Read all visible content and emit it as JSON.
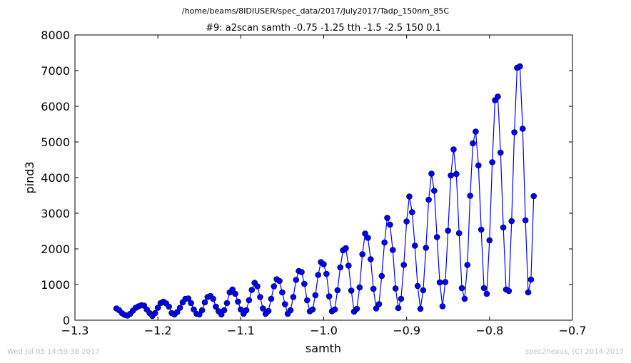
{
  "suptitle": "/home/beams/8IDIUSER/spec_data/2017/July2017/Tadp_150nm_85C",
  "footer_left": "Wed Jul 05 14:59:38 2017",
  "footer_right": "spec2nexus, (C) 2014-2017",
  "colors": {
    "series": "#0000ff",
    "marker_edge": "#000000",
    "footer_text": "#bfbfbf"
  },
  "chart_data": {
    "type": "line",
    "title": "#9: a2scan  samth -0.75 -1.25  tth -1.5 -2.5  150 0.1",
    "xlabel": "samth",
    "ylabel": "pind3",
    "xlim": [
      -1.3,
      -0.7
    ],
    "ylim": [
      0,
      8000
    ],
    "xticks": [
      -1.3,
      -1.2,
      -1.1,
      -1.0,
      -0.9,
      -0.8,
      -0.7
    ],
    "xtick_labels": [
      "−1.3",
      "−1.2",
      "−1.1",
      "−1.0",
      "−0.9",
      "−0.8",
      "−0.7"
    ],
    "yticks": [
      0,
      1000,
      2000,
      3000,
      4000,
      5000,
      6000,
      7000,
      8000
    ],
    "ytick_labels": [
      "0",
      "1000",
      "2000",
      "3000",
      "4000",
      "5000",
      "6000",
      "7000",
      "8000"
    ],
    "grid": false,
    "legend": "none",
    "marker": "circle",
    "series": [
      {
        "x_start": -1.25,
        "x_step": 0.003333,
        "values": [
          330,
          280,
          200,
          150,
          130,
          180,
          270,
          350,
          390,
          420,
          410,
          300,
          200,
          120,
          200,
          350,
          480,
          520,
          470,
          380,
          200,
          160,
          230,
          350,
          500,
          600,
          610,
          480,
          300,
          180,
          160,
          280,
          500,
          650,
          680,
          600,
          380,
          250,
          160,
          280,
          480,
          780,
          860,
          740,
          520,
          300,
          180,
          280,
          560,
          850,
          1050,
          950,
          650,
          330,
          180,
          260,
          600,
          950,
          1150,
          1100,
          780,
          450,
          180,
          280,
          650,
          1130,
          1380,
          1350,
          1020,
          560,
          250,
          300,
          700,
          1270,
          1630,
          1570,
          1300,
          670,
          250,
          300,
          840,
          1480,
          1960,
          2020,
          1530,
          830,
          240,
          320,
          920,
          1850,
          2430,
          2310,
          1710,
          880,
          330,
          450,
          1240,
          2180,
          2870,
          2680,
          1970,
          890,
          340,
          600,
          1550,
          2770,
          3470,
          3030,
          2090,
          960,
          320,
          840,
          2030,
          3380,
          4110,
          3630,
          2330,
          1060,
          390,
          1070,
          2510,
          4060,
          4790,
          4100,
          2440,
          900,
          600,
          1550,
          3490,
          4960,
          5290,
          4340,
          2540,
          900,
          740,
          2240,
          4430,
          6170,
          6270,
          4700,
          2600,
          860,
          820,
          2780,
          5270,
          7080,
          7120,
          5370,
          2800,
          780,
          1140,
          3480
        ]
      }
    ]
  }
}
